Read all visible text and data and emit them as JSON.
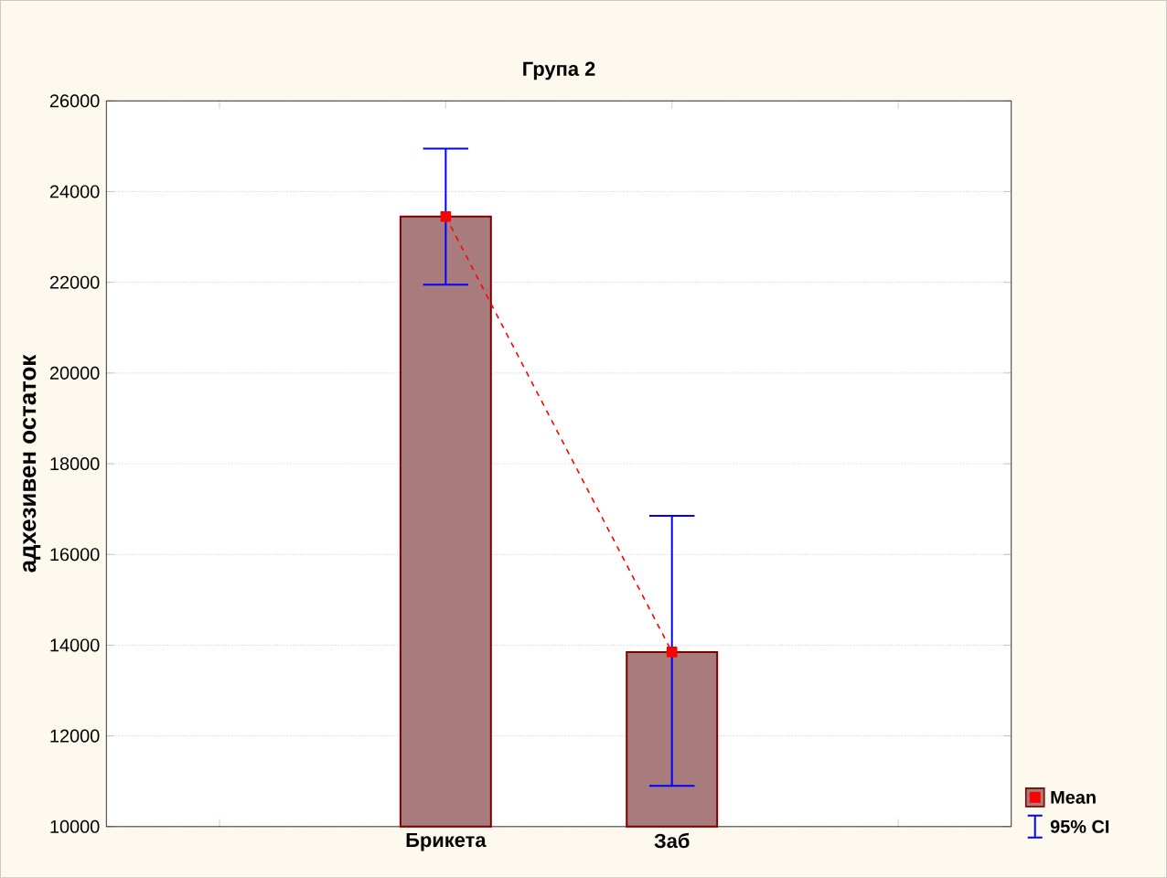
{
  "chart_data": {
    "type": "bar",
    "title": "Група 2",
    "ylabel": "адхезивен остаток",
    "categories": [
      null,
      "Брикета",
      "Заб",
      null
    ],
    "ylim": [
      10000,
      26000
    ],
    "yticks": [
      10000,
      12000,
      14000,
      16000,
      18000,
      20000,
      22000,
      24000,
      26000
    ],
    "grid": "y",
    "legend": "bottom right",
    "annotations": [
      "95% CI"
    ],
    "series": [
      {
        "color": "#a87c7c",
        "values": [
          null,
          23450,
          13850,
          null
        ]
      },
      {
        "type": "line",
        "name": "Mean",
        "color": "#ff0000",
        "marker": "square",
        "line_style": "dashed",
        "values": [
          null,
          23450,
          13850,
          null
        ],
        "errors": [
          null,
          [
            21950,
            24950
          ],
          [
            10900,
            16850
          ],
          null
        ]
      }
    ]
  }
}
